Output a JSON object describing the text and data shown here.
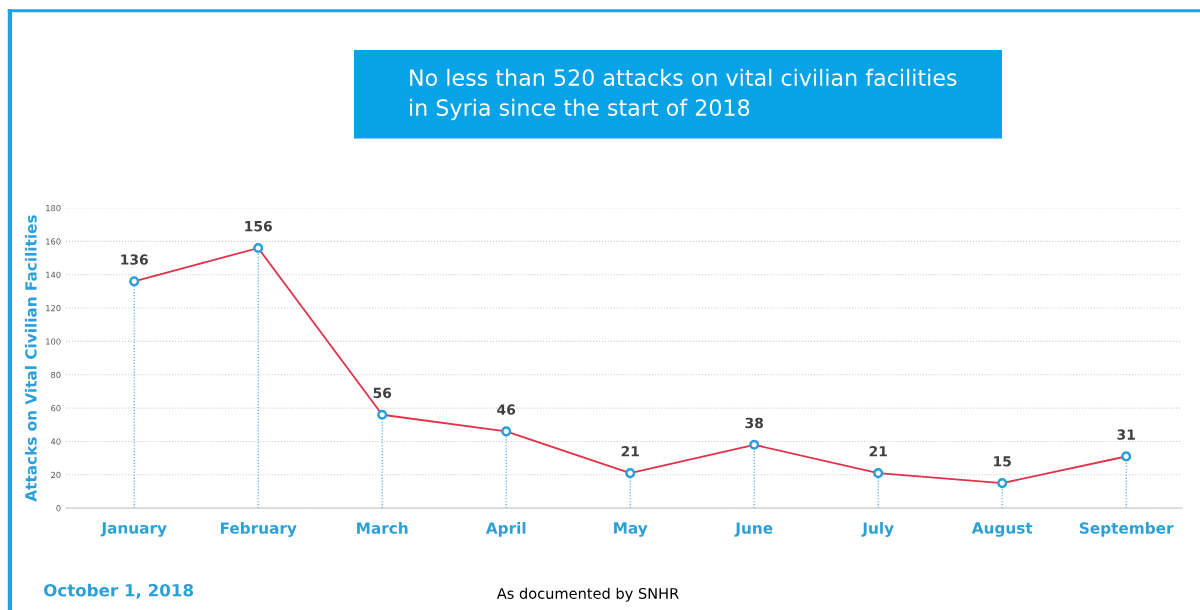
{
  "chart_data": {
    "type": "line",
    "title": "No less than 520 attacks on vital civilian facilities\nin Syria since the start of 2018",
    "ylabel": "Attacks on Vital Civilian Facilities",
    "categories": [
      "January",
      "February",
      "March",
      "April",
      "May",
      "June",
      "July",
      "August",
      "September"
    ],
    "series": [
      {
        "color": "#e0324a",
        "values": [
          136,
          156,
          56,
          46,
          21,
          38,
          21,
          15,
          31
        ]
      }
    ],
    "ylim": [
      0,
      180
    ],
    "yticks": [
      0,
      20,
      40,
      60,
      80,
      100,
      120,
      140,
      160,
      180
    ],
    "grid": true,
    "marker": "circle",
    "line_style": "solid",
    "data_labels": true,
    "legend": false,
    "annotations": [
      "October 1, 2018",
      "As documented by SNHR"
    ]
  }
}
